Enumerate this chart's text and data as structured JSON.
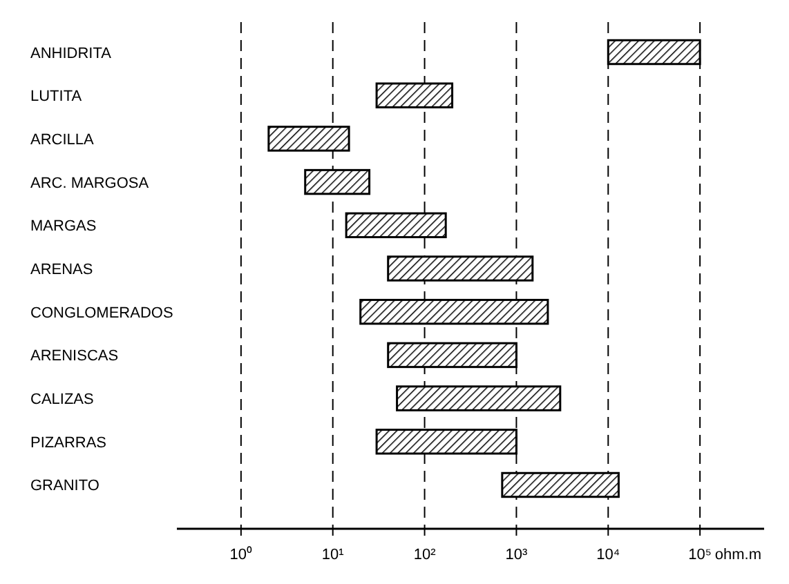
{
  "chart_data": {
    "type": "bar",
    "orientation": "horizontal",
    "log": "x",
    "grid": "x",
    "xlabel": "ohm.m",
    "categories": [
      "ANHIDRITA",
      "LUTITA",
      "ARCILLA",
      "ARC. MARGOSA",
      "MARGAS",
      "ARENAS",
      "CONGLOMERADOS",
      "ARENISCAS",
      "CALIZAS",
      "PIZARRAS",
      "GRANITO"
    ],
    "base": [
      10000,
      30,
      2,
      5,
      14,
      40,
      20,
      40,
      50,
      30,
      700
    ],
    "values": [
      90000,
      170,
      13,
      20,
      156,
      1460,
      2180,
      960,
      2950,
      970,
      12300
    ],
    "color": "#000000",
    "xlim": [
      0.2,
      500000
    ],
    "xticks": [
      {
        "value": 1,
        "label": "10⁰"
      },
      {
        "value": 10,
        "label": "10¹"
      },
      {
        "value": 100,
        "label": "10²"
      },
      {
        "value": 1000,
        "label": "10³"
      },
      {
        "value": 10000,
        "label": "10⁴"
      },
      {
        "value": 100000,
        "label": "10⁵"
      }
    ]
  }
}
